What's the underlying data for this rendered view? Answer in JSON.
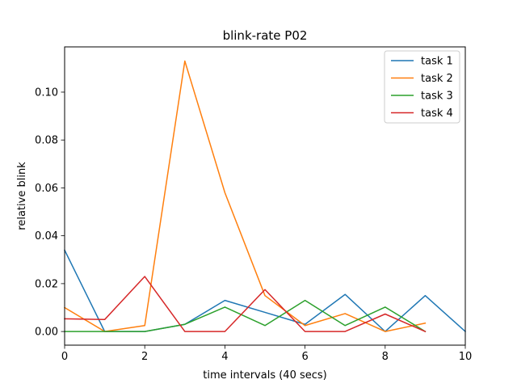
{
  "chart_data": {
    "type": "line",
    "title": "blink-rate P02",
    "xlabel": "time intervals (40 secs)",
    "ylabel": "relative blink",
    "xlim": [
      0,
      10
    ],
    "ylim": [
      -0.0057,
      0.1189
    ],
    "xticks": [
      0,
      2,
      4,
      6,
      8,
      10
    ],
    "xtick_labels": [
      "0",
      "2",
      "4",
      "6",
      "8",
      "10"
    ],
    "yticks": [
      0.0,
      0.02,
      0.04,
      0.06,
      0.08,
      0.1
    ],
    "ytick_labels": [
      "0.00",
      "0.02",
      "0.04",
      "0.06",
      "0.08",
      "0.10"
    ],
    "grid": false,
    "legend_position": "top-right",
    "series": [
      {
        "name": "task 1",
        "color": "#1f77b4",
        "x": [
          0,
          1,
          2,
          3,
          4,
          5,
          6,
          7,
          8,
          9,
          10
        ],
        "values": [
          0.034,
          0.0,
          0.0,
          0.003,
          0.013,
          0.008,
          0.003,
          0.0155,
          0.0,
          0.015,
          0.0
        ]
      },
      {
        "name": "task 2",
        "color": "#ff7f0e",
        "x": [
          0,
          1,
          2,
          3,
          4,
          5,
          6,
          7,
          8,
          9
        ],
        "values": [
          0.01,
          0.0,
          0.0025,
          0.113,
          0.058,
          0.015,
          0.0025,
          0.0075,
          0.0,
          0.0035
        ]
      },
      {
        "name": "task 3",
        "color": "#2ca02c",
        "x": [
          0,
          1,
          2,
          3,
          4,
          5,
          6,
          7,
          8,
          9
        ],
        "values": [
          0.0,
          0.0,
          0.0,
          0.003,
          0.0102,
          0.0025,
          0.013,
          0.0025,
          0.0102,
          0.0
        ]
      },
      {
        "name": "task 4",
        "color": "#d62728",
        "x": [
          0,
          1,
          2,
          3,
          4,
          5,
          6,
          7,
          8,
          9
        ],
        "values": [
          0.0053,
          0.005,
          0.023,
          0.0,
          0.0,
          0.0175,
          0.0,
          0.0,
          0.0073,
          0.0
        ]
      }
    ]
  }
}
